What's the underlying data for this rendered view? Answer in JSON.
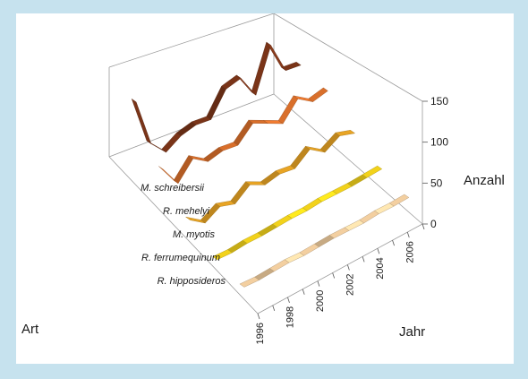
{
  "chart_data": {
    "type": "3d-ribbon",
    "title": "",
    "xlabel": "Jahr",
    "ylabel": "Art",
    "zlabel": "Anzahl",
    "x": [
      1996,
      1997,
      1998,
      1999,
      2000,
      2001,
      2002,
      2003,
      2004,
      2005,
      2006,
      2007
    ],
    "x_tick_labels": [
      "1996",
      "1998",
      "2000",
      "2002",
      "2004",
      "2006"
    ],
    "zlim": [
      0,
      150
    ],
    "z_ticks": [
      "0",
      "50",
      "100",
      "150"
    ],
    "series": [
      {
        "name": "M. schreibersii",
        "color": "#7a3418",
        "values": [
          150,
          60,
          30,
          45,
          50,
          45,
          85,
          90,
          45,
          120,
          60,
          55
        ]
      },
      {
        "name": "R. mehelyi",
        "color": "#d96f2b",
        "values": [
          80,
          40,
          70,
          50,
          55,
          50,
          75,
          60,
          45,
          75,
          55,
          60
        ]
      },
      {
        "name": "M. myotis",
        "color": "#e8a424",
        "values": [
          40,
          20,
          35,
          25,
          45,
          30,
          35,
          30,
          50,
          30,
          45,
          35
        ]
      },
      {
        "name": "R. ferrumequinum",
        "color": "#f2d21b",
        "values": [
          20,
          18,
          20,
          19,
          20,
          21,
          20,
          22,
          21,
          20,
          21,
          22
        ]
      },
      {
        "name": "R. hipposideros",
        "color": "#f3cfa0",
        "values": [
          22,
          20,
          21,
          22,
          20,
          21,
          22,
          21,
          20,
          22,
          21,
          22
        ]
      }
    ]
  }
}
